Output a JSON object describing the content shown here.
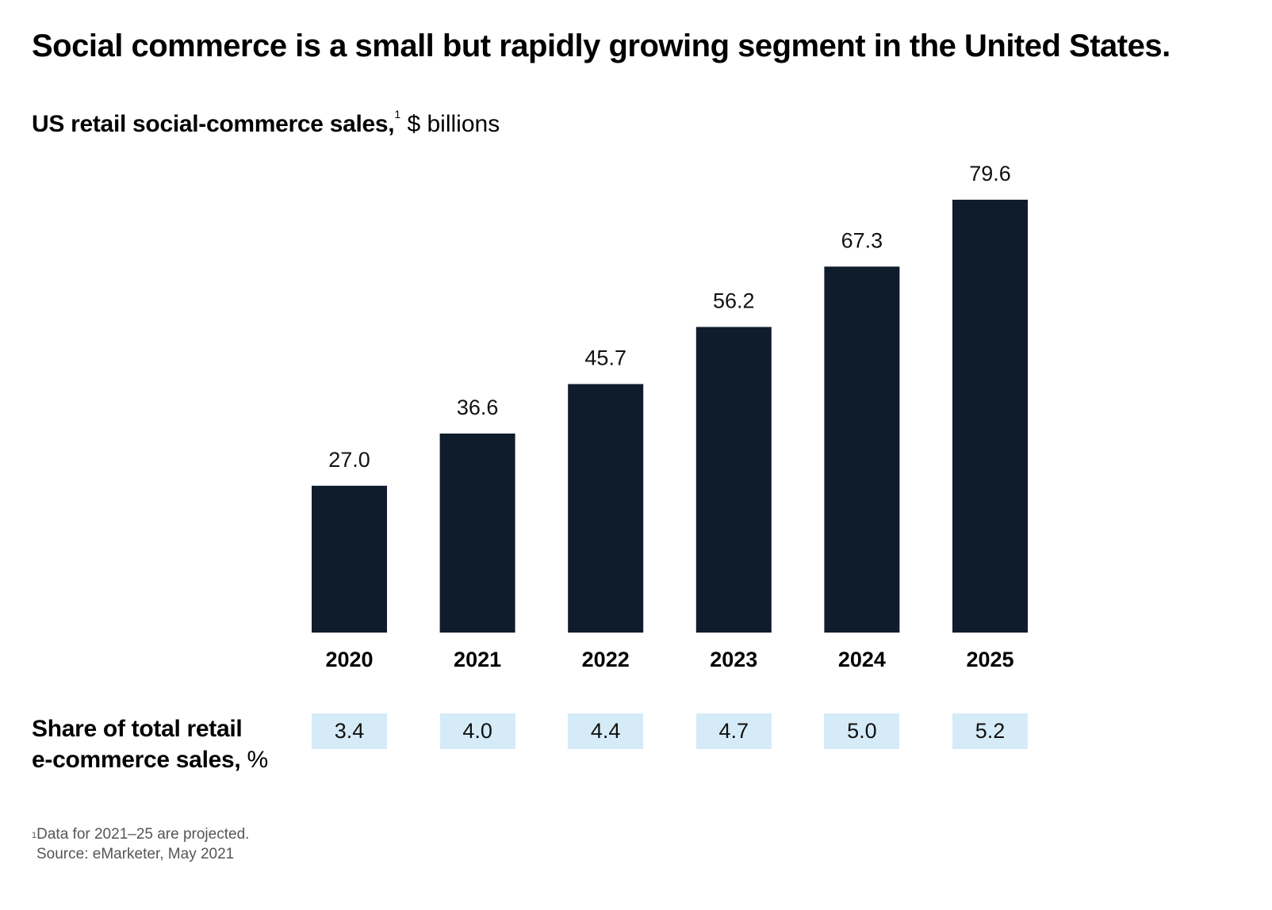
{
  "chart_data": {
    "type": "bar",
    "title": "Social commerce is a small but rapidly growing segment in the United States.",
    "subtitle": {
      "label": "US retail social-commerce sales,",
      "footnote_marker": "1",
      "unit": "$ billions"
    },
    "categories": [
      "2020",
      "2021",
      "2022",
      "2023",
      "2024",
      "2025"
    ],
    "values": [
      27.0,
      36.6,
      45.7,
      56.2,
      67.3,
      79.6
    ],
    "value_labels": [
      "27.0",
      "36.6",
      "45.7",
      "56.2",
      "67.3",
      "79.6"
    ],
    "ylim": [
      0,
      80
    ],
    "grid": false,
    "bar_color": "#0f1c2c",
    "xlabel": "",
    "ylabel": "",
    "secondary_row": {
      "label_bold": "Share of total retail e-commerce sales,",
      "label_line1": "Share of total retail",
      "label_line2": "e-commerce sales,",
      "unit": "%",
      "values": [
        3.4,
        4.0,
        4.4,
        4.7,
        5.0,
        5.2
      ],
      "value_labels": [
        "3.4",
        "4.0",
        "4.4",
        "4.7",
        "5.0",
        "5.2"
      ],
      "box_color": "#d5ebf8"
    }
  },
  "footnote": {
    "marker": "1",
    "text": "Data for 2021–25 are projected.",
    "source": "Source: eMarketer, May 2021"
  }
}
